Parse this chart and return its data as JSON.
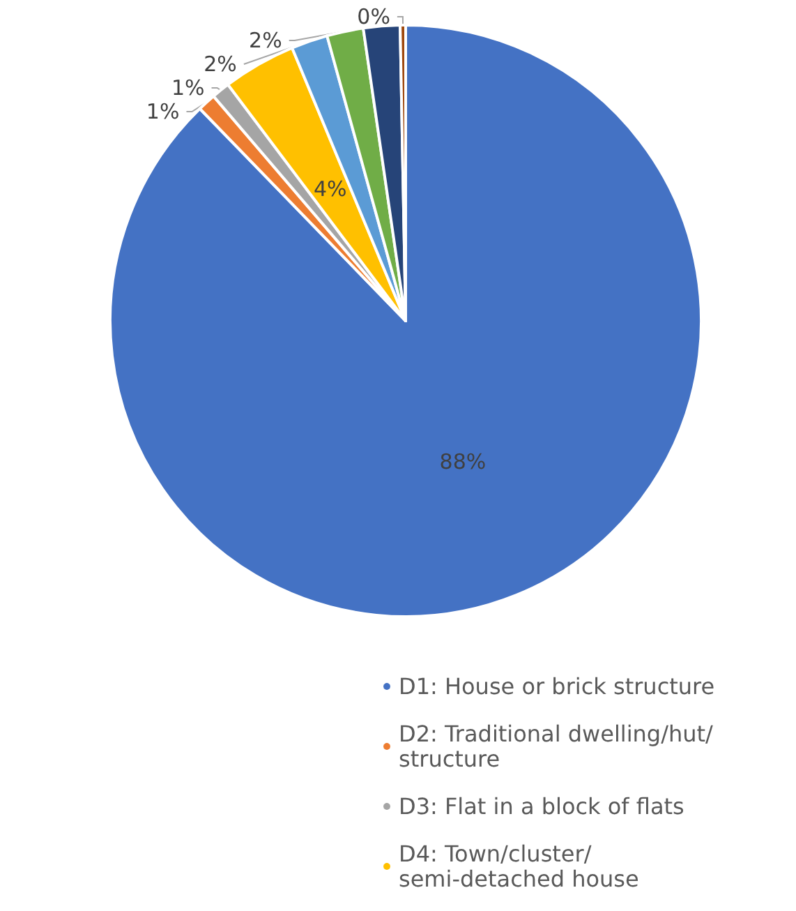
{
  "chart_data": {
    "type": "pie",
    "categories": [
      "D1: House or brick structure",
      "D2: Traditional dwelling/hut/structure",
      "D3: Flat in a block of flats",
      "D4: Town/cluster/semi-detached house",
      null,
      null,
      null,
      null
    ],
    "values": [
      88,
      1,
      1,
      4,
      2,
      2,
      2,
      0.3
    ],
    "colors": [
      "#4472c4",
      "#ed7d31",
      "#a5a5a5",
      "#ffc000",
      "#5b9bd5",
      "#70ad47",
      "#264478",
      "#9e480e"
    ],
    "value_labels": [
      "88%",
      "1%",
      "1%",
      "4%",
      "2%",
      "2%",
      null,
      "0%"
    ],
    "legend": "bottom right"
  }
}
